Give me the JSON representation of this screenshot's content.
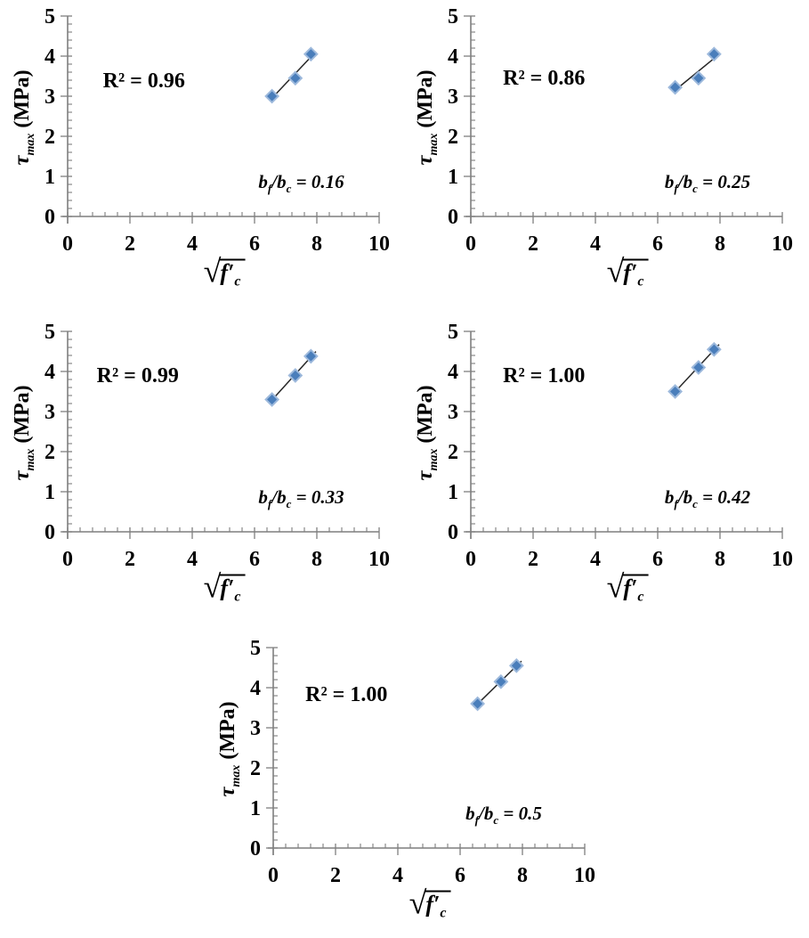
{
  "figure": {
    "background": "#ffffff",
    "panel_count": 5,
    "description_labels": {
      "r2_prefix": "R²",
      "ratio_numerator": "bf",
      "ratio_denominator": "bc"
    }
  },
  "chart_data": {
    "type": "scatter",
    "title": "",
    "shared": {
      "xlabel": "√f′c",
      "ylabel": "τmax (MPa)",
      "xlim": [
        0,
        10
      ],
      "ylim": [
        0,
        5
      ],
      "xticks": [
        0,
        2,
        4,
        6,
        8,
        10
      ],
      "yticks": [
        0,
        1,
        2,
        3,
        4,
        5
      ],
      "x_minor_step": 0.4,
      "y_minor_step": 0.2,
      "x": [
        6.56,
        7.31,
        7.81
      ],
      "grid": false,
      "legend": false,
      "marker": "diamond",
      "trendline": "linear"
    },
    "panels": [
      {
        "name": "bf/bc = 0.16",
        "r2_label": "R² = 0.96",
        "ratio_suffix": " = 0.16",
        "y": [
          3.0,
          3.45,
          4.05
        ],
        "r2_pos": {
          "x": 2.45,
          "y": 3.37
        },
        "ratio_pos": {
          "x": 7.5,
          "y": 0.82
        }
      },
      {
        "name": "bf/bc = 0.25",
        "r2_label": "R² = 0.86",
        "ratio_suffix": " = 0.25",
        "y": [
          3.22,
          3.45,
          4.05
        ],
        "r2_pos": {
          "x": 2.35,
          "y": 3.44
        },
        "ratio_pos": {
          "x": 7.6,
          "y": 0.82
        }
      },
      {
        "name": "bf/bc = 0.33",
        "r2_label": "R² = 0.99",
        "ratio_suffix": " = 0.33",
        "y": [
          3.3,
          3.9,
          4.38
        ],
        "r2_pos": {
          "x": 2.25,
          "y": 3.9
        },
        "ratio_pos": {
          "x": 7.5,
          "y": 0.82
        }
      },
      {
        "name": "bf/bc = 0.42",
        "r2_label": "R² = 1.00",
        "ratio_suffix": " = 0.42",
        "y": [
          3.5,
          4.1,
          4.55
        ],
        "r2_pos": {
          "x": 2.35,
          "y": 3.9
        },
        "ratio_pos": {
          "x": 7.6,
          "y": 0.82
        }
      },
      {
        "name": "bf/bc = 0.5",
        "r2_label": "R² = 1.00",
        "ratio_suffix": " = 0.5",
        "y": [
          3.6,
          4.15,
          4.55
        ],
        "r2_pos": {
          "x": 2.35,
          "y": 3.82
        },
        "ratio_pos": {
          "x": 7.4,
          "y": 0.82
        }
      }
    ],
    "label_parts": {
      "ylabel": {
        "symbol": "τ",
        "sub": "max",
        "rest": " (MPa)"
      },
      "xlabel": {
        "radical": "√",
        "base": "f′",
        "sub": "c"
      },
      "ratio": {
        "num_base": "b",
        "num_sub": "f",
        "den_base": "/b",
        "den_sub": "c"
      }
    },
    "colors": {
      "axis": "#7f7f7f",
      "text": "#000000",
      "marker_fill": "#4a7ebb",
      "marker_stroke": "#9db9dc",
      "trendline": "#262626"
    }
  }
}
